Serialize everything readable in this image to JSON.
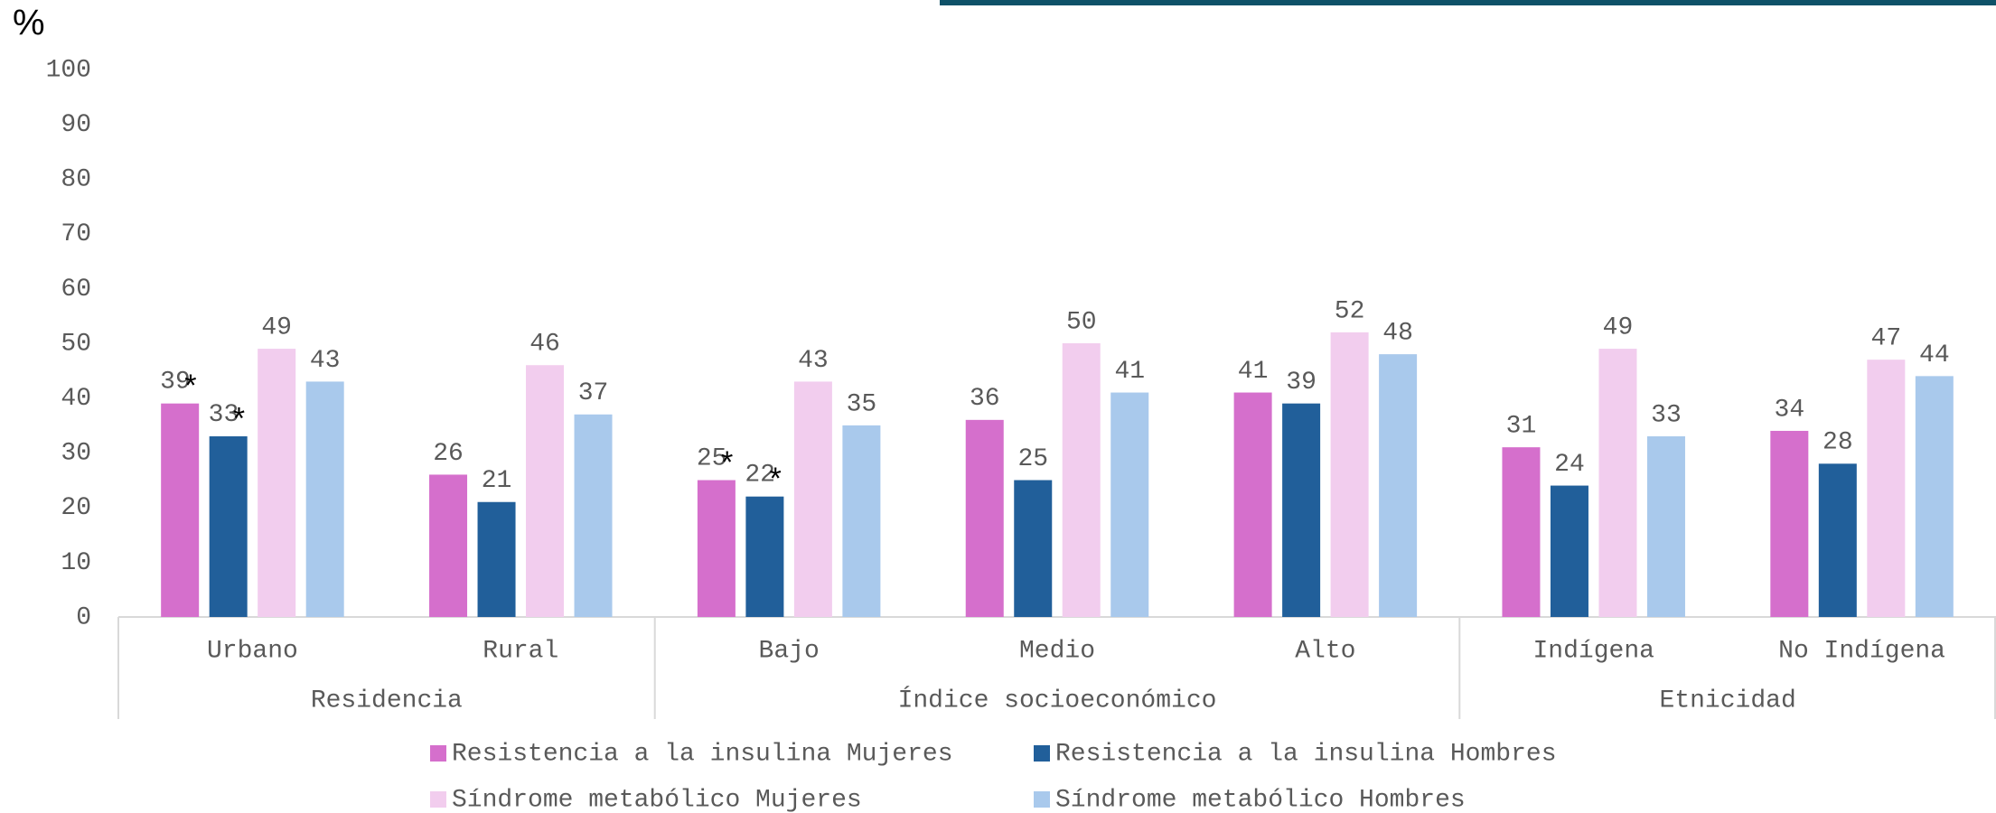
{
  "chart_data": {
    "type": "bar",
    "y_label": "%",
    "categories": [
      "Urbano",
      "Rural",
      "Bajo",
      "Medio",
      "Alto",
      "Indígena",
      "No Indígena"
    ],
    "groups": [
      "Residencia",
      "Índice socioeconómico",
      "Etnicidad"
    ],
    "series": [
      {
        "name": "Resistencia a la insulina Mujeres",
        "color": "#d56fcc",
        "values": [
          39,
          26,
          25,
          36,
          41,
          31,
          34
        ],
        "value_labels": [
          "39*",
          "26",
          "25*",
          "36",
          "41",
          "31",
          "34"
        ]
      },
      {
        "name": "Resistencia a la insulina Hombres",
        "color": "#215f9a",
        "values": [
          33,
          21,
          22,
          25,
          39,
          24,
          28
        ],
        "value_labels": [
          "33*",
          "21",
          "22*",
          "25",
          "39",
          "24",
          "28"
        ]
      },
      {
        "name": "Síndrome metabólico Mujeres",
        "color": "#f2cdee",
        "values": [
          49,
          46,
          43,
          50,
          52,
          49,
          47
        ]
      },
      {
        "name": "Síndrome metabólico Hombres",
        "color": "#a9c9ec",
        "values": [
          43,
          37,
          35,
          41,
          48,
          33,
          44
        ]
      }
    ],
    "ylim": [
      0,
      100
    ],
    "yticks": [
      0,
      10,
      20,
      30,
      40,
      50,
      60,
      70,
      80,
      90,
      100
    ],
    "grid": false
  }
}
